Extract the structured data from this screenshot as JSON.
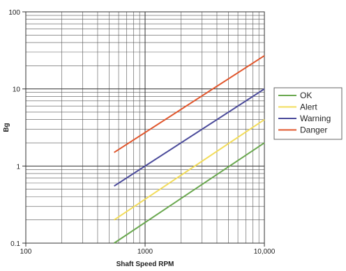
{
  "chart_data": {
    "type": "line",
    "xscale": "log",
    "yscale": "log",
    "xlim": [
      100,
      10000
    ],
    "ylim": [
      0.1,
      100
    ],
    "grid": true,
    "legend_position": "right",
    "xlabel": "Shaft Speed RPM",
    "ylabel": "Bg",
    "x_ticks": [
      100,
      1000,
      10000
    ],
    "x_tick_labels": [
      "100",
      "1000",
      "10,000"
    ],
    "y_ticks": [
      0.1,
      1,
      10,
      100
    ],
    "y_tick_labels": [
      "0.1",
      "1",
      "10",
      "100"
    ],
    "series": [
      {
        "name": "OK",
        "color": "#6aa84f",
        "x": [
          550,
          10000
        ],
        "y": [
          0.1,
          2.0
        ]
      },
      {
        "name": "Alert",
        "color": "#f2dc5a",
        "x": [
          550,
          10000
        ],
        "y": [
          0.2,
          4.0
        ]
      },
      {
        "name": "Warning",
        "color": "#4a4a9a",
        "x": [
          550,
          10000
        ],
        "y": [
          0.55,
          10.0
        ]
      },
      {
        "name": "Danger",
        "color": "#e0552b",
        "x": [
          550,
          10000
        ],
        "y": [
          1.5,
          27.0
        ]
      }
    ]
  }
}
